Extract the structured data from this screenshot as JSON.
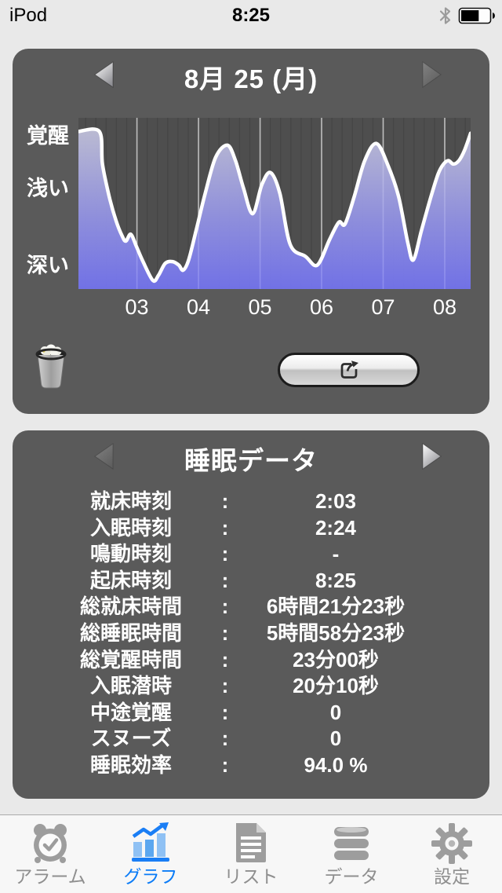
{
  "status_bar": {
    "carrier": "iPod",
    "time": "8:25",
    "bluetooth_icon": "bluetooth-icon",
    "battery_icon": "battery-icon",
    "battery_fill_ratio": 0.62
  },
  "graph_panel": {
    "title": "8月 25 (月)",
    "prev_arrow": {
      "icon": "chevron-left-icon",
      "enabled": true
    },
    "next_arrow": {
      "icon": "chevron-right-icon",
      "enabled": false
    },
    "trash_icon": "trash-icon",
    "share_icon": "share-icon"
  },
  "chart_data": {
    "type": "area",
    "title": "8月 25 (月)",
    "x_unit": "hour_of_day",
    "x_range": [
      2.05,
      8.42
    ],
    "x_ticks": [
      3,
      4,
      5,
      6,
      7,
      8
    ],
    "x_tick_labels": [
      "03",
      "04",
      "05",
      "06",
      "07",
      "08"
    ],
    "y_axis_labels": [
      {
        "label": "覚醒",
        "level": 0.105
      },
      {
        "label": "浅い",
        "level": 0.413
      },
      {
        "label": "深い",
        "level": 0.862
      }
    ],
    "y_scale_note": "level 0 = awake (top of plot), 1 = deepest sleep (bottom of plot)",
    "grid": {
      "major_every_hours": 1,
      "minor_every_hours": 0.1667
    },
    "legend": "none",
    "points": [
      [
        2.05,
        0.08
      ],
      [
        2.39,
        0.08
      ],
      [
        2.44,
        0.27
      ],
      [
        2.55,
        0.46
      ],
      [
        2.66,
        0.6
      ],
      [
        2.76,
        0.69
      ],
      [
        2.82,
        0.72
      ],
      [
        2.9,
        0.68
      ],
      [
        2.99,
        0.75
      ],
      [
        3.1,
        0.84
      ],
      [
        3.26,
        0.95
      ],
      [
        3.35,
        0.92
      ],
      [
        3.46,
        0.85
      ],
      [
        3.58,
        0.84
      ],
      [
        3.68,
        0.86
      ],
      [
        3.75,
        0.89
      ],
      [
        3.84,
        0.83
      ],
      [
        3.96,
        0.66
      ],
      [
        4.11,
        0.44
      ],
      [
        4.28,
        0.23
      ],
      [
        4.47,
        0.16
      ],
      [
        4.6,
        0.25
      ],
      [
        4.73,
        0.41
      ],
      [
        4.88,
        0.56
      ],
      [
        5.03,
        0.39
      ],
      [
        5.17,
        0.32
      ],
      [
        5.32,
        0.44
      ],
      [
        5.49,
        0.74
      ],
      [
        5.74,
        0.81
      ],
      [
        5.93,
        0.86
      ],
      [
        6.13,
        0.71
      ],
      [
        6.28,
        0.61
      ],
      [
        6.38,
        0.62
      ],
      [
        6.53,
        0.46
      ],
      [
        6.7,
        0.25
      ],
      [
        6.89,
        0.15
      ],
      [
        7.08,
        0.28
      ],
      [
        7.25,
        0.46
      ],
      [
        7.4,
        0.73
      ],
      [
        7.49,
        0.83
      ],
      [
        7.62,
        0.66
      ],
      [
        7.76,
        0.48
      ],
      [
        7.89,
        0.33
      ],
      [
        7.98,
        0.27
      ],
      [
        8.06,
        0.25
      ],
      [
        8.14,
        0.27
      ],
      [
        8.23,
        0.25
      ],
      [
        8.32,
        0.19
      ],
      [
        8.42,
        0.09
      ]
    ],
    "colors": {
      "plot_bg": "#4e4e4e",
      "grid_minor": "#454545",
      "grid_major": "#b2b2b2",
      "fill_top": "#c3c3dc",
      "fill_bottom": "#7474f1",
      "line": "#ffffff"
    }
  },
  "data_panel": {
    "title": "睡眠データ",
    "prev_arrow": {
      "icon": "chevron-left-icon",
      "enabled": false
    },
    "next_arrow": {
      "icon": "chevron-right-icon",
      "enabled": true
    },
    "separator": ":",
    "rows": [
      {
        "label": "就床時刻",
        "value": "2:03"
      },
      {
        "label": "入眠時刻",
        "value": "2:24"
      },
      {
        "label": "鳴動時刻",
        "value": "-"
      },
      {
        "label": "起床時刻",
        "value": "8:25"
      },
      {
        "label": "総就床時間",
        "value": "6時間21分23秒"
      },
      {
        "label": "総睡眠時間",
        "value": "5時間58分23秒"
      },
      {
        "label": "総覚醒時間",
        "value": "23分00秒"
      },
      {
        "label": "入眠潜時",
        "value": "20分10秒"
      },
      {
        "label": "中途覚醒",
        "value": "0"
      },
      {
        "label": "スヌーズ",
        "value": "0"
      },
      {
        "label": "睡眠効率",
        "value": "94.0 %"
      }
    ]
  },
  "tab_bar": {
    "active_color": "#0b7cf7",
    "inactive_color": "#8f8f8f",
    "items": [
      {
        "name": "alarm",
        "label": "アラーム",
        "icon": "alarm-clock-icon",
        "active": false
      },
      {
        "name": "graph",
        "label": "グラフ",
        "icon": "bar-chart-icon",
        "active": true
      },
      {
        "name": "list",
        "label": "リスト",
        "icon": "list-icon",
        "active": false
      },
      {
        "name": "data",
        "label": "データ",
        "icon": "database-icon",
        "active": false
      },
      {
        "name": "settings",
        "label": "設定",
        "icon": "gear-icon",
        "active": false
      }
    ]
  },
  "colors": {
    "page_bg": "#e9e9e9",
    "panel_bg": "#5a5a5a",
    "tab_bar_bg": "#f7f7f7",
    "text_on_panel": "#ffffff"
  }
}
